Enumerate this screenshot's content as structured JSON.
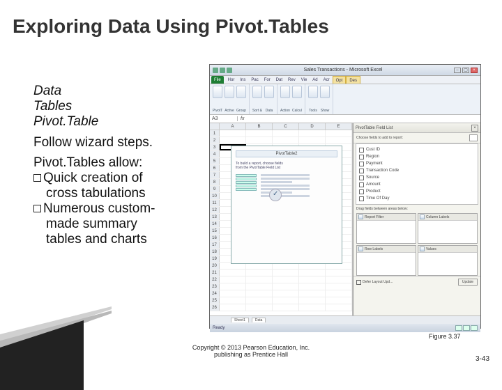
{
  "slide": {
    "title": "Exploring Data Using Pivot.Tables",
    "figure_caption": "Figure 3.37",
    "copyright_line1": "Copyright © 2013 Pearson Education, Inc.",
    "copyright_line2": "publishing as Prentice Hall",
    "page_number": "3-43"
  },
  "content": {
    "line1": "Data",
    "line2": "Tables",
    "line3": "Pivot.Table",
    "follow": "Follow wizard steps.",
    "allow": "Pivot.Tables allow:",
    "bullet1a": "Quick creation of",
    "bullet1b": "cross tabulations",
    "bullet2a": "Numerous custom-",
    "bullet2b": "made summary",
    "bullet2c": "tables and charts"
  },
  "excel": {
    "window_title": "Sales Transactions - Microsoft Excel",
    "tabs": {
      "file": "File",
      "t1": "Hor",
      "t2": "Ins",
      "t3": "Pac",
      "t4": "For",
      "t5": "Dat",
      "t6": "Rev",
      "t7": "Vie",
      "t8": "Ad",
      "t9": "Acr",
      "ctx1": "Opt",
      "ctx2": "Des"
    },
    "ribbon": {
      "g1": [
        "PivotTable",
        "Active",
        "Group"
      ],
      "g2": [
        "Sort &",
        "Data"
      ],
      "g3": [
        "Actions",
        "Calculations"
      ],
      "g4": [
        "Tools",
        "Show"
      ]
    },
    "namebox": "A3",
    "columns": [
      "A",
      "B",
      "C",
      "D",
      "E"
    ],
    "placeholder": {
      "title": "PivotTable2",
      "hint1": "To build a report, choose fields",
      "hint2": "from the PivotTable Field List"
    },
    "fieldlist": {
      "title": "PivotTable Field List",
      "subtitle": "Choose fields to add to report:",
      "fields": [
        "Cust ID",
        "Region",
        "Payment",
        "Transaction Code",
        "Source",
        "Amount",
        "Product",
        "Time Of Day"
      ],
      "drag_hint": "Drag fields between areas below:",
      "zones": {
        "filter": "Report Filter",
        "cols": "Column Labels",
        "rows": "Row Labels",
        "vals": "Values"
      },
      "defer": "Defer Layout Upd...",
      "update": "Update"
    },
    "sheets": [
      "Sheet1",
      "Data"
    ],
    "status": "Ready"
  },
  "colors": {
    "title": "#333333",
    "text": "#111111",
    "excel_accent": "#1e7e34",
    "footer_gray": "#d0d0d0"
  }
}
